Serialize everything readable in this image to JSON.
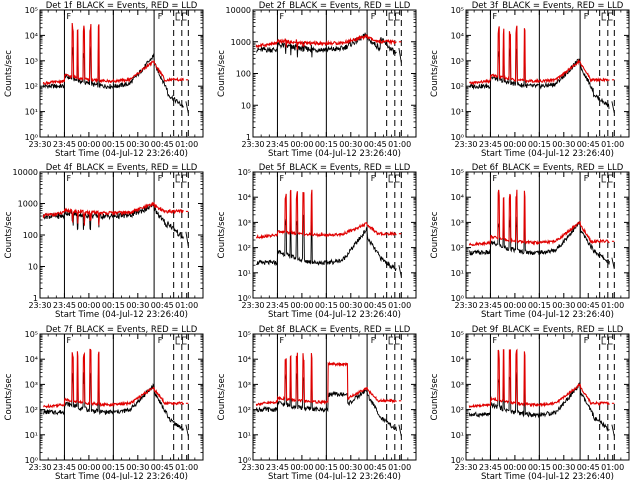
{
  "figure": {
    "x_ticks": [
      "23:30",
      "23:45",
      "00:00",
      "00:15",
      "00:30",
      "00:45",
      "01:00"
    ],
    "x_label": "Start Time (04-Jul-12 23:26:40)",
    "y_label": "Counts/sec",
    "marker_label": "F",
    "colors": {
      "events": "#000000",
      "lld": "#e00000",
      "axes": "#000000",
      "background": "#ffffff"
    }
  },
  "chart_data": [
    {
      "type": "line",
      "title": "Det 1f_BLACK = Events, RED = LLD",
      "yscale": "log",
      "ylim": [
        1,
        100000
      ],
      "y_ticks": [
        "10⁰",
        "10¹",
        "10²",
        "10³",
        "10⁴",
        "10⁵"
      ],
      "base": 2,
      "hump_peak": 2.9,
      "drop_after": 1.2,
      "lld_base": 2.2,
      "lld_hump": 2.9,
      "spike_lld": 4.5,
      "spike_events": 3.6,
      "series": [
        {
          "name": "BLACK = Events"
        },
        {
          "name": "RED = LLD"
        }
      ]
    },
    {
      "type": "line",
      "title": "Det 2f_BLACK = Events, RED = LLD",
      "yscale": "log",
      "ylim": [
        1,
        10000
      ],
      "y_ticks": [
        "1",
        "10",
        "100",
        "1000",
        "10000"
      ],
      "base": 2.75,
      "hump_peak": 3.1,
      "drop_after": 2.6,
      "lld_base": 2.95,
      "lld_hump": 3.15,
      "spike_lld": 3.1,
      "spike_events": 3.0,
      "series": [
        {
          "name": "BLACK = Events"
        },
        {
          "name": "RED = LLD"
        }
      ]
    },
    {
      "type": "line",
      "title": "Det 3f_BLACK = Events, RED = LLD",
      "yscale": "log",
      "ylim": [
        1,
        100000
      ],
      "y_ticks": [
        "10⁰",
        "10¹",
        "10²",
        "10³",
        "10⁴",
        "10⁵"
      ],
      "base": 2,
      "hump_peak": 2.8,
      "drop_after": 1.2,
      "lld_base": 2.2,
      "lld_hump": 2.9,
      "spike_lld": 4.4,
      "spike_events": 3.6,
      "series": [
        {
          "name": "BLACK = Events"
        },
        {
          "name": "RED = LLD"
        }
      ]
    },
    {
      "type": "line",
      "title": "Det 4f_BLACK = Events, RED = LLD",
      "yscale": "log",
      "ylim": [
        1,
        10000
      ],
      "y_ticks": [
        "1",
        "10",
        "100",
        "1000",
        "10000"
      ],
      "base": 2.6,
      "hump_peak": 2.85,
      "drop_after": 1.9,
      "lld_base": 2.7,
      "lld_hump": 2.95,
      "spike_lld": 2.7,
      "spike_events": 2.6,
      "series": [
        {
          "name": "BLACK = Events"
        },
        {
          "name": "RED = LLD"
        }
      ]
    },
    {
      "type": "line",
      "title": "Det 5f_BLACK = Events, RED = LLD",
      "yscale": "log",
      "ylim": [
        1,
        100000
      ],
      "y_ticks": [
        "10⁰",
        "10¹",
        "10²",
        "10³",
        "10⁴",
        "10⁵"
      ],
      "base": 1.4,
      "hump_peak": 2.4,
      "drop_after": 1.1,
      "lld_base": 2.5,
      "lld_hump": 2.9,
      "spike_lld": 4.3,
      "spike_events": 3.3,
      "series": [
        {
          "name": "BLACK = Events"
        },
        {
          "name": "RED = LLD"
        }
      ]
    },
    {
      "type": "line",
      "title": "Det 6f_BLACK = Events, RED = LLD",
      "yscale": "log",
      "ylim": [
        1,
        100000
      ],
      "y_ticks": [
        "10⁰",
        "10¹",
        "10²",
        "10³",
        "10⁴",
        "10⁵"
      ],
      "base": 1.8,
      "hump_peak": 2.7,
      "drop_after": 1.4,
      "lld_base": 2.2,
      "lld_hump": 2.9,
      "spike_lld": 4.3,
      "spike_events": 3.3,
      "series": [
        {
          "name": "BLACK = Events"
        },
        {
          "name": "RED = LLD"
        }
      ]
    },
    {
      "type": "line",
      "title": "Det 7f_BLACK = Events, RED = LLD",
      "yscale": "log",
      "ylim": [
        1,
        100000
      ],
      "y_ticks": [
        "10⁰",
        "10¹",
        "10²",
        "10³",
        "10⁴",
        "10⁵"
      ],
      "base": 1.9,
      "hump_peak": 2.7,
      "drop_after": 1.2,
      "lld_base": 2.2,
      "lld_hump": 2.8,
      "spike_lld": 4.4,
      "spike_events": 3.5,
      "series": [
        {
          "name": "BLACK = Events"
        },
        {
          "name": "RED = LLD"
        }
      ]
    },
    {
      "type": "line",
      "title": "Det 8f_BLACK = Events, RED = LLD",
      "yscale": "log",
      "ylim": [
        1,
        100000
      ],
      "y_ticks": [
        "10⁰",
        "10¹",
        "10²",
        "10³",
        "10⁴",
        "10⁵"
      ],
      "base": 2.0,
      "hump_peak": 2.6,
      "drop_after": 1.2,
      "lld_base": 2.3,
      "lld_hump": 2.8,
      "spike_lld": 4.3,
      "spike_events": 3.6,
      "plateau": true,
      "series": [
        {
          "name": "BLACK = Events"
        },
        {
          "name": "RED = LLD"
        }
      ]
    },
    {
      "type": "line",
      "title": "Det 9f_BLACK = Events, RED = LLD",
      "yscale": "log",
      "ylim": [
        1,
        100000
      ],
      "y_ticks": [
        "10⁰",
        "10¹",
        "10²",
        "10³",
        "10⁴",
        "10⁵"
      ],
      "base": 1.8,
      "hump_peak": 2.7,
      "drop_after": 1.2,
      "lld_base": 2.2,
      "lld_hump": 2.9,
      "spike_lld": 4.4,
      "spike_events": 3.5,
      "series": [
        {
          "name": "BLACK = Events"
        },
        {
          "name": "RED = LLD"
        }
      ]
    }
  ]
}
